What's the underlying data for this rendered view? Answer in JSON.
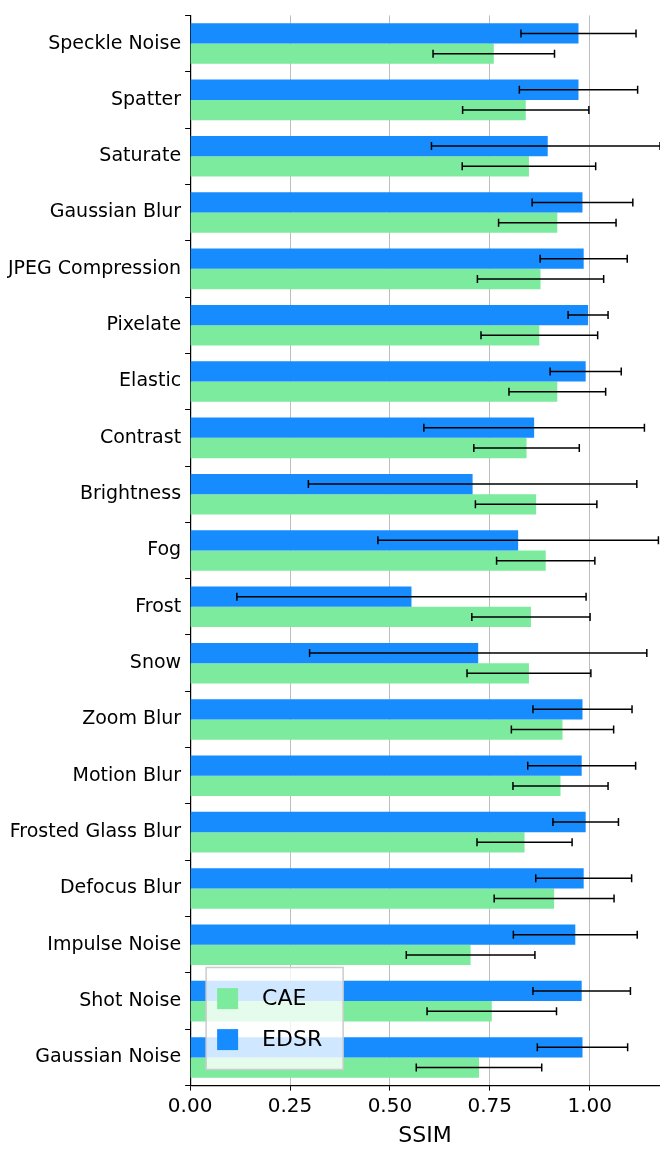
{
  "chart_data": {
    "type": "bar",
    "orientation": "horizontal",
    "xlabel": "SSIM",
    "categories": [
      "Speckle Noise",
      "Spatter",
      "Saturate",
      "Gaussian Blur",
      "JPEG Compression",
      "Pixelate",
      "Elastic",
      "Contrast",
      "Brightness",
      "Fog",
      "Frost",
      "Snow",
      "Zoom Blur",
      "Motion Blur",
      "Frosted Glass Blur",
      "Defocus Blur",
      "Impulse Noise",
      "Shot Noise",
      "Gaussian Noise"
    ],
    "series": [
      {
        "name": "CAE",
        "color": "#7deb9d",
        "values": [
          0.76,
          0.84,
          0.848,
          0.919,
          0.877,
          0.874,
          0.919,
          0.842,
          0.866,
          0.89,
          0.853,
          0.848,
          0.932,
          0.927,
          0.837,
          0.911,
          0.702,
          0.755,
          0.723
        ],
        "errors": [
          0.152,
          0.158,
          0.167,
          0.147,
          0.158,
          0.146,
          0.121,
          0.132,
          0.152,
          0.123,
          0.148,
          0.155,
          0.128,
          0.119,
          0.119,
          0.15,
          0.161,
          0.162,
          0.157
        ]
      },
      {
        "name": "EDSR",
        "color": "#178cff",
        "values": [
          0.972,
          0.972,
          0.895,
          0.982,
          0.985,
          0.996,
          0.99,
          0.861,
          0.707,
          0.821,
          0.554,
          0.721,
          0.982,
          0.98,
          0.99,
          0.985,
          0.964,
          0.98,
          0.982
        ],
        "errors": [
          0.144,
          0.148,
          [
            0.604,
            1.176
          ],
          0.126,
          0.109,
          0.05,
          0.089,
          0.276,
          0.411,
          0.351,
          0.437,
          0.422,
          0.124,
          0.135,
          0.082,
          0.12,
          0.155,
          0.122,
          0.113
        ]
      }
    ],
    "xlim": [
      0,
      1.176
    ],
    "xticks": [
      {
        "value": 0,
        "label": "0.00"
      },
      {
        "value": 0.25,
        "label": "0.25"
      },
      {
        "value": 0.5,
        "label": "0.50"
      },
      {
        "value": 0.75,
        "label": "0.75"
      },
      {
        "value": 1,
        "label": "1.00"
      }
    ],
    "grid": "x",
    "legend": "bottom left"
  }
}
